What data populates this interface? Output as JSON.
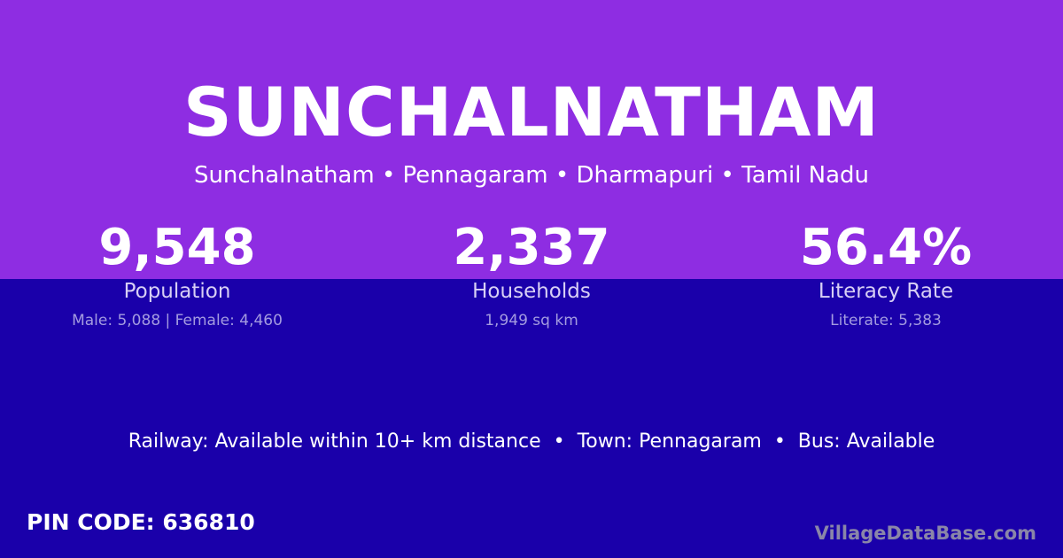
{
  "title": "SUNCHALNATHAM",
  "breadcrumb": "Sunchalnatham • Pennagaram • Dharmapuri • Tamil Nadu",
  "stats": [
    {
      "value": "9,548",
      "label": "Population",
      "detail": "Male: 5,088 | Female: 4,460"
    },
    {
      "value": "2,337",
      "label": "Households",
      "detail": "1,949 sq km"
    },
    {
      "value": "56.4%",
      "label": "Literacy Rate",
      "detail": "Literate: 5,383"
    }
  ],
  "amenities": "Railway: Available within 10+ km distance  •  Town: Pennagaram  •  Bus: Available",
  "pin_code": "PIN CODE: 636810",
  "brand": "VillageDataBase.com",
  "colors": {
    "top_bg": "#8e2de2",
    "bottom_bg": "#1a00aa"
  }
}
